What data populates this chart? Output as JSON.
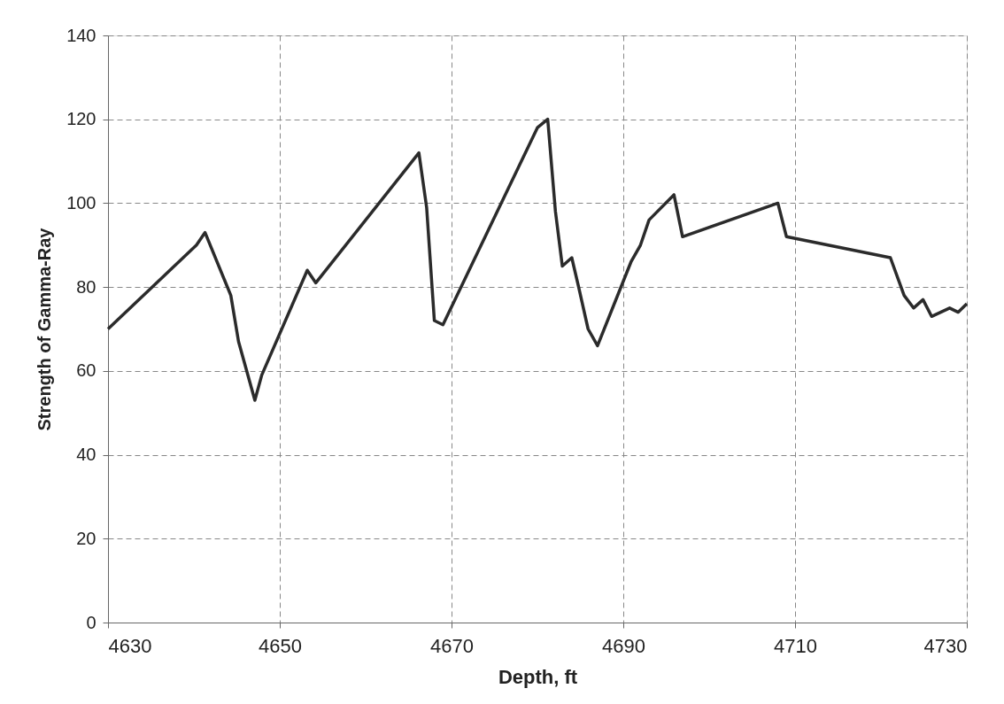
{
  "chart_data": {
    "type": "line",
    "xlabel": "Depth, ft",
    "ylabel": "Strength of Gamma-Ray",
    "x": [
      4630,
      4640.3,
      4641.3,
      4644.3,
      4645.2,
      4647.1,
      4647.9,
      4653.2,
      4654.2,
      4666.2,
      4667.1,
      4668.0,
      4669.0,
      4680.0,
      4681.2,
      4682.1,
      4682.9,
      4684.0,
      4684.8,
      4685.9,
      4687.0,
      4690.9,
      4692.0,
      4693.0,
      4695.9,
      4696.9,
      4708.0,
      4709.0,
      4721.1,
      4722.7,
      4723.8,
      4724.9,
      4725.9,
      4728.0,
      4729.0,
      4730
    ],
    "series": [
      {
        "color": "#2b2b2b",
        "values": [
          70,
          90,
          93,
          78,
          67,
          53,
          59,
          84,
          81,
          112,
          99,
          72,
          71,
          118,
          120,
          98,
          85,
          87,
          80,
          70,
          66,
          86,
          90,
          96,
          102,
          92,
          100,
          92,
          87,
          78,
          75,
          77,
          73,
          75,
          74,
          76
        ]
      }
    ],
    "xlim": [
      4630,
      4730
    ],
    "xticks": [
      4630,
      4650,
      4670,
      4690,
      4710,
      4730
    ],
    "ylim": [
      0,
      140
    ],
    "yticks": [
      0,
      20,
      40,
      60,
      80,
      100,
      120,
      140
    ],
    "grid": true,
    "marker": "none",
    "line_style": "solid"
  }
}
